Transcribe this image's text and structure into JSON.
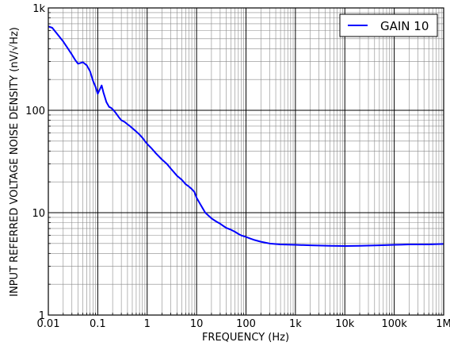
{
  "chart_data": {
    "type": "line",
    "title": "",
    "xlabel": "FREQUENCY (Hz)",
    "ylabel": "INPUT REFERRED VOLTAGE NOISE DENSITY (nV/√Hz)",
    "xscale": "log",
    "yscale": "log",
    "xlim": [
      0.01,
      1000000
    ],
    "ylim": [
      1,
      1000
    ],
    "x_ticks": [
      0.01,
      0.1,
      1,
      10,
      100,
      1000,
      10000,
      100000,
      1000000
    ],
    "x_tick_labels": [
      "0.01",
      "0.1",
      "1",
      "10",
      "100",
      "1k",
      "10k",
      "100k",
      "1M"
    ],
    "y_ticks": [
      1,
      10,
      100,
      1000
    ],
    "y_tick_labels": [
      "1",
      "10",
      "100",
      "1k"
    ],
    "grid": true,
    "legend_position": "top-right",
    "series": [
      {
        "name": "GAIN 10",
        "color": "#0000ff",
        "x": [
          0.01,
          0.012,
          0.015,
          0.02,
          0.025,
          0.03,
          0.035,
          0.04,
          0.045,
          0.05,
          0.06,
          0.07,
          0.08,
          0.09,
          0.1,
          0.11,
          0.12,
          0.13,
          0.15,
          0.17,
          0.19,
          0.21,
          0.24,
          0.27,
          0.3,
          0.35,
          0.4,
          0.45,
          0.5,
          0.6,
          0.7,
          0.8,
          0.9,
          1,
          1.2,
          1.5,
          2,
          2.5,
          3,
          4,
          5,
          6,
          7,
          8,
          9,
          10,
          12,
          15,
          20,
          25,
          30,
          35,
          40,
          50,
          60,
          70,
          80,
          100,
          120,
          150,
          200,
          300,
          500,
          1000,
          2000,
          5000,
          10000,
          20000,
          50000,
          100000,
          200000,
          500000,
          1000000
        ],
        "y": [
          660,
          640,
          560,
          470,
          400,
          350,
          310,
          285,
          290,
          295,
          275,
          240,
          195,
          170,
          145,
          160,
          175,
          150,
          120,
          108,
          105,
          100,
          92,
          85,
          80,
          77,
          73,
          70,
          67,
          62,
          58,
          54,
          50,
          47,
          43,
          38,
          33,
          30,
          27,
          23,
          21,
          19,
          18,
          17,
          16,
          14,
          12,
          10,
          8.8,
          8.2,
          7.8,
          7.4,
          7.1,
          6.8,
          6.5,
          6.2,
          6.0,
          5.8,
          5.6,
          5.4,
          5.2,
          5.0,
          4.9,
          4.85,
          4.8,
          4.75,
          4.72,
          4.75,
          4.8,
          4.85,
          4.9,
          4.9,
          4.95
        ]
      }
    ]
  }
}
